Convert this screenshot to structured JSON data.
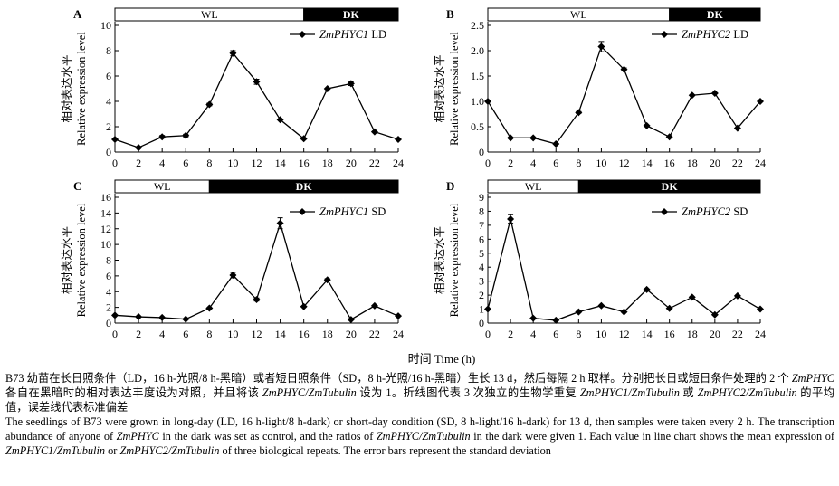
{
  "figure": {
    "shared_xlabel": "时间 Time (h)",
    "caption_cn": [
      {
        "t": "B73 幼苗在长日照条件（LD，16 h-光照/8 h-黑暗）或者短日照条件（SD，8 h-光照/16 h-黑暗）生长 13 d，然后每隔 2 h 取样。分别把长日或短日条件处理的 2 个 ",
        "i": false
      },
      {
        "t": "ZmPHYC",
        "i": true
      },
      {
        "t": " 各自在黑暗时的相对表达丰度设为对照，并且将该 ",
        "i": false
      },
      {
        "t": "ZmPHYC/ZmTubulin",
        "i": true
      },
      {
        "t": " 设为 1。折线图代表 3 次独立的生物学重复 ",
        "i": false
      },
      {
        "t": "ZmPHYC1/ZmTubulin",
        "i": true
      },
      {
        "t": " 或 ",
        "i": false
      },
      {
        "t": "ZmPHYC2/ZmTubulin",
        "i": true
      },
      {
        "t": " 的平均值，误差线代表标准偏差",
        "i": false
      }
    ],
    "caption_en": [
      {
        "t": "The seedlings of B73 were grown in long-day (LD, 16 h-light/8 h-dark) or short-day condition (SD, 8 h-light/16 h-dark) for 13 d, then samples were taken every 2 h. The transcription abundance of anyone of ",
        "i": false
      },
      {
        "t": "ZmPHYC",
        "i": true
      },
      {
        "t": " in the dark was set as control, and the ratios of ",
        "i": false
      },
      {
        "t": "ZmPHYC/ZmTubulin",
        "i": true
      },
      {
        "t": " in the dark were given 1. Each value in line chart shows the mean expression of ",
        "i": false
      },
      {
        "t": "ZmPHYC1/ZmTubulin",
        "i": true
      },
      {
        "t": " or ",
        "i": false
      },
      {
        "t": "ZmPHYC2/ZmTubulin",
        "i": true
      },
      {
        "t": " of three biological repeats. The error bars represent the standard deviation",
        "i": false
      }
    ]
  },
  "chart_data": [
    {
      "type": "line",
      "panel": "A",
      "ylabel_cn": "相对表达水平",
      "ylabel_en": "Relative expression level",
      "xlabel": "",
      "x": [
        0,
        2,
        4,
        6,
        8,
        10,
        12,
        14,
        16,
        18,
        20,
        22,
        24
      ],
      "xticks": [
        0,
        2,
        4,
        6,
        8,
        10,
        12,
        14,
        16,
        18,
        20,
        22,
        24
      ],
      "ylim": [
        0,
        10
      ],
      "yticks": [
        0,
        2,
        4,
        6,
        8,
        10
      ],
      "xlim": [
        0,
        24
      ],
      "light_bar": [
        {
          "label": "WL",
          "start": 0,
          "end": 16,
          "fill": "#ffffff"
        },
        {
          "label": "DK",
          "start": 16,
          "end": 24,
          "fill": "#000000"
        }
      ],
      "legend": {
        "gene": "ZmPHYC1",
        "cond": "LD",
        "position": "top-right"
      },
      "series": [
        {
          "name": "ZmPHYC1 LD",
          "values": [
            1.0,
            0.35,
            1.2,
            1.3,
            3.75,
            7.8,
            5.55,
            2.55,
            1.05,
            5.0,
            5.4,
            1.6,
            1.0
          ],
          "err": [
            0,
            0,
            0.1,
            0.1,
            0.1,
            0.2,
            0.2,
            0,
            0.05,
            0,
            0.15,
            0,
            0
          ]
        }
      ]
    },
    {
      "type": "line",
      "panel": "B",
      "ylabel_cn": "相对表达水平",
      "ylabel_en": "Relative expression level",
      "xlabel": "",
      "x": [
        0,
        2,
        4,
        6,
        8,
        10,
        12,
        14,
        16,
        18,
        20,
        22,
        24
      ],
      "xticks": [
        0,
        2,
        4,
        6,
        8,
        10,
        12,
        14,
        16,
        18,
        20,
        22,
        24
      ],
      "ylim": [
        0,
        2.5
      ],
      "yticks": [
        0,
        0.5,
        1.0,
        1.5,
        2.0,
        2.5
      ],
      "xlim": [
        0,
        24
      ],
      "light_bar": [
        {
          "label": "WL",
          "start": 0,
          "end": 16,
          "fill": "#ffffff"
        },
        {
          "label": "DK",
          "start": 16,
          "end": 24,
          "fill": "#000000"
        }
      ],
      "legend": {
        "gene": "ZmPHYC2",
        "cond": "LD",
        "position": "top-right"
      },
      "series": [
        {
          "name": "ZmPHYC2 LD",
          "values": [
            1.0,
            0.28,
            0.28,
            0.16,
            0.78,
            2.08,
            1.63,
            0.52,
            0.3,
            1.12,
            1.16,
            0.47,
            1.0
          ],
          "err": [
            0,
            0,
            0,
            0,
            0.02,
            0.1,
            0.03,
            0,
            0,
            0,
            0,
            0,
            0
          ]
        }
      ]
    },
    {
      "type": "line",
      "panel": "C",
      "ylabel_cn": "相对表达水平",
      "ylabel_en": "Relative expression level",
      "xlabel": "",
      "x": [
        0,
        2,
        4,
        6,
        8,
        10,
        12,
        14,
        16,
        18,
        20,
        22,
        24
      ],
      "xticks": [
        0,
        2,
        4,
        6,
        8,
        10,
        12,
        14,
        16,
        18,
        20,
        22,
        24
      ],
      "ylim": [
        0,
        16
      ],
      "yticks": [
        0,
        2,
        4,
        6,
        8,
        10,
        12,
        14,
        16
      ],
      "xlim": [
        0,
        24
      ],
      "light_bar": [
        {
          "label": "WL",
          "start": 0,
          "end": 8,
          "fill": "#ffffff"
        },
        {
          "label": "DK",
          "start": 8,
          "end": 24,
          "fill": "#000000"
        }
      ],
      "legend": {
        "gene": "ZmPHYC1",
        "cond": "SD",
        "position": "top-right"
      },
      "series": [
        {
          "name": "ZmPHYC1 SD",
          "values": [
            1.0,
            0.8,
            0.7,
            0.5,
            1.9,
            6.1,
            3.0,
            12.7,
            2.1,
            5.5,
            0.45,
            2.2,
            0.9
          ],
          "err": [
            0,
            0,
            0,
            0,
            0,
            0.35,
            0.2,
            0.7,
            0,
            0.15,
            0,
            0,
            0
          ]
        }
      ]
    },
    {
      "type": "line",
      "panel": "D",
      "ylabel_cn": "相对表达水平",
      "ylabel_en": "Relative expression level",
      "xlabel": "",
      "x": [
        0,
        2,
        4,
        6,
        8,
        10,
        12,
        14,
        16,
        18,
        20,
        22,
        24
      ],
      "xticks": [
        0,
        2,
        4,
        6,
        8,
        10,
        12,
        14,
        16,
        18,
        20,
        22,
        24
      ],
      "ylim": [
        0,
        9
      ],
      "yticks": [
        0,
        1,
        2,
        3,
        4,
        5,
        6,
        7,
        8,
        9
      ],
      "xlim": [
        0,
        24
      ],
      "light_bar": [
        {
          "label": "WL",
          "start": 0,
          "end": 8,
          "fill": "#ffffff"
        },
        {
          "label": "DK",
          "start": 8,
          "end": 24,
          "fill": "#000000"
        }
      ],
      "legend": {
        "gene": "ZmPHYC2",
        "cond": "SD",
        "position": "top-right"
      },
      "series": [
        {
          "name": "ZmPHYC2 SD",
          "values": [
            1.0,
            7.45,
            0.35,
            0.2,
            0.8,
            1.25,
            0.8,
            2.4,
            1.05,
            1.85,
            0.6,
            1.95,
            1.0
          ],
          "err": [
            0,
            0.3,
            0,
            0,
            0,
            0,
            0,
            0,
            0,
            0,
            0,
            0,
            0
          ]
        }
      ]
    }
  ]
}
